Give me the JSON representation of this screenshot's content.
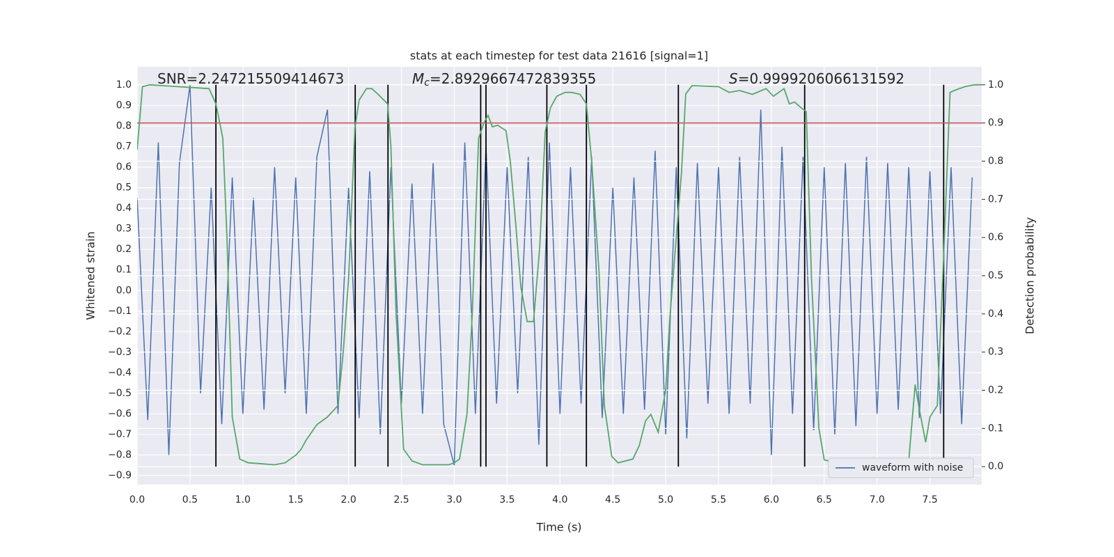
{
  "chart_data": {
    "type": "line",
    "title": "stats at each timestep for test data 21616 [signal=1]",
    "xlabel": "Time (s)",
    "ylabel": "Whitened strain",
    "y2label": "Detection probability",
    "grid": true,
    "legend": "lower right",
    "xlim": [
      0,
      7.99
    ],
    "ylim": [
      -0.944,
      1.088
    ],
    "y2lim": [
      -0.047,
      1.047
    ],
    "xticks": [
      {
        "value": 0,
        "label": "0.0"
      },
      {
        "value": 0.5,
        "label": "0.5"
      },
      {
        "value": 1,
        "label": "1.0"
      },
      {
        "value": 1.5,
        "label": "1.5"
      },
      {
        "value": 2,
        "label": "2.0"
      },
      {
        "value": 2.5,
        "label": "2.5"
      },
      {
        "value": 3,
        "label": "3.0"
      },
      {
        "value": 3.5,
        "label": "3.5"
      },
      {
        "value": 4,
        "label": "4.0"
      },
      {
        "value": 4.5,
        "label": "4.5"
      },
      {
        "value": 5,
        "label": "5.0"
      },
      {
        "value": 5.5,
        "label": "5.5"
      },
      {
        "value": 6,
        "label": "6.0"
      },
      {
        "value": 6.5,
        "label": "6.5"
      },
      {
        "value": 7,
        "label": "7.0"
      },
      {
        "value": 7.5,
        "label": "7.5"
      }
    ],
    "yticks": [
      {
        "value": -0.9,
        "label": "−0.9"
      },
      {
        "value": -0.8,
        "label": "−0.8"
      },
      {
        "value": -0.7,
        "label": "−0.7"
      },
      {
        "value": -0.6,
        "label": "−0.6"
      },
      {
        "value": -0.5,
        "label": "−0.5"
      },
      {
        "value": -0.4,
        "label": "−0.4"
      },
      {
        "value": -0.3,
        "label": "−0.3"
      },
      {
        "value": -0.2,
        "label": "−0.2"
      },
      {
        "value": -0.1,
        "label": "−0.1"
      },
      {
        "value": 0,
        "label": "0.0"
      },
      {
        "value": 0.1,
        "label": "0.1"
      },
      {
        "value": 0.2,
        "label": "0.2"
      },
      {
        "value": 0.3,
        "label": "0.3"
      },
      {
        "value": 0.4,
        "label": "0.4"
      },
      {
        "value": 0.5,
        "label": "0.5"
      },
      {
        "value": 0.6,
        "label": "0.6"
      },
      {
        "value": 0.7,
        "label": "0.7"
      },
      {
        "value": 0.8,
        "label": "0.8"
      },
      {
        "value": 0.9,
        "label": "0.9"
      },
      {
        "value": 1,
        "label": "1.0"
      }
    ],
    "y2ticks": [
      {
        "value": 0,
        "label": "0.0"
      },
      {
        "value": 0.1,
        "label": "0.1"
      },
      {
        "value": 0.2,
        "label": "0.2"
      },
      {
        "value": 0.3,
        "label": "0.3"
      },
      {
        "value": 0.4,
        "label": "0.4"
      },
      {
        "value": 0.5,
        "label": "0.5"
      },
      {
        "value": 0.6,
        "label": "0.6"
      },
      {
        "value": 0.7,
        "label": "0.7"
      },
      {
        "value": 0.8,
        "label": "0.8"
      },
      {
        "value": 0.9,
        "label": "0.9"
      },
      {
        "value": 1,
        "label": "1.0"
      }
    ],
    "series": [
      {
        "name": "waveform with noise",
        "color": "#4c72b0",
        "x": [
          0,
          0.1,
          0.2,
          0.3,
          0.4,
          0.5,
          0.6,
          0.7,
          0.8,
          0.9,
          1,
          1.1,
          1.2,
          1.3,
          1.4,
          1.5,
          1.6,
          1.7,
          1.8,
          1.9,
          2,
          2.1,
          2.2,
          2.3,
          2.4,
          2.5,
          2.6,
          2.7,
          2.8,
          2.9,
          3,
          3.1,
          3.2,
          3.3,
          3.4,
          3.5,
          3.6,
          3.7,
          3.8,
          3.9,
          4,
          4.1,
          4.2,
          4.3,
          4.4,
          4.5,
          4.6,
          4.7,
          4.8,
          4.9,
          5,
          5.1,
          5.2,
          5.3,
          5.4,
          5.5,
          5.6,
          5.7,
          5.8,
          5.9,
          6,
          6.1,
          6.2,
          6.3,
          6.4,
          6.5,
          6.6,
          6.7,
          6.8,
          6.9,
          7,
          7.1,
          7.2,
          7.3,
          7.4,
          7.5,
          7.6,
          7.7,
          7.8,
          7.9
        ],
        "values": [
          0.45,
          -0.63,
          0.72,
          -0.8,
          0.62,
          1.0,
          -0.5,
          0.5,
          -0.65,
          0.55,
          -0.6,
          0.45,
          -0.58,
          0.6,
          -0.5,
          0.55,
          -0.6,
          0.65,
          0.88,
          -0.6,
          0.5,
          -0.62,
          0.58,
          -0.7,
          0.6,
          -0.55,
          0.52,
          -0.6,
          0.62,
          -0.65,
          -0.85,
          0.72,
          -0.6,
          0.7,
          -0.55,
          0.6,
          -0.5,
          0.65,
          -0.75,
          0.72,
          -0.6,
          0.6,
          -0.55,
          0.65,
          -0.62,
          0.5,
          -0.6,
          0.55,
          -0.58,
          0.68,
          -0.7,
          0.6,
          -0.72,
          0.62,
          -0.55,
          0.6,
          -0.6,
          0.65,
          -0.55,
          0.88,
          -0.8,
          0.7,
          -0.6,
          0.65,
          -0.68,
          0.6,
          -0.7,
          0.62,
          -0.66,
          0.65,
          -0.6,
          0.62,
          -0.58,
          0.6,
          -0.62,
          0.58,
          -0.6,
          0.6,
          -0.65,
          0.55
        ]
      },
      {
        "color": "#55a868",
        "axis": "y2",
        "x": [
          0,
          0.05,
          0.12,
          0.68,
          0.745,
          0.81,
          0.85,
          0.9,
          0.97,
          1.05,
          1.3,
          1.4,
          1.5,
          1.55,
          1.6,
          1.7,
          1.8,
          1.9,
          1.95,
          2,
          2.06,
          2.1,
          2.17,
          2.22,
          2.28,
          2.37,
          2.4,
          2.45,
          2.52,
          2.6,
          2.7,
          2.95,
          3,
          3.05,
          3.12,
          3.17,
          3.23,
          3.28,
          3.32,
          3.36,
          3.41,
          3.49,
          3.53,
          3.58,
          3.63,
          3.69,
          3.75,
          3.81,
          3.86,
          3.91,
          3.97,
          4.05,
          4.11,
          4.19,
          4.25,
          4.3,
          4.37,
          4.42,
          4.49,
          4.55,
          4.69,
          4.75,
          4.81,
          4.86,
          4.93,
          5,
          5.04,
          5.1,
          5.15,
          5.19,
          5.25,
          5.5,
          5.6,
          5.7,
          5.82,
          5.95,
          6.02,
          6.12,
          6.17,
          6.22,
          6.28,
          6.33,
          6.38,
          6.45,
          6.5,
          6.68,
          6.88,
          7.27,
          7.3,
          7.36,
          7.4,
          7.46,
          7.5,
          7.57,
          7.63,
          7.69,
          7.73,
          7.83,
          7.92,
          7.99
        ],
        "values": [
          0.83,
          0.995,
          1.0,
          0.99,
          0.95,
          0.86,
          0.6,
          0.13,
          0.02,
          0.01,
          0.005,
          0.01,
          0.03,
          0.045,
          0.07,
          0.11,
          0.13,
          0.16,
          0.3,
          0.49,
          0.885,
          0.96,
          0.99,
          0.99,
          0.975,
          0.95,
          0.84,
          0.4,
          0.046,
          0.015,
          0.005,
          0.005,
          0.01,
          0.02,
          0.137,
          0.4,
          0.86,
          0.9,
          0.92,
          0.89,
          0.894,
          0.88,
          0.8,
          0.64,
          0.47,
          0.38,
          0.38,
          0.58,
          0.876,
          0.94,
          0.97,
          0.98,
          0.98,
          0.975,
          0.95,
          0.8,
          0.51,
          0.16,
          0.027,
          0.01,
          0.02,
          0.055,
          0.12,
          0.137,
          0.09,
          0.2,
          0.39,
          0.6,
          0.77,
          0.976,
          0.998,
          0.995,
          0.98,
          0.985,
          0.975,
          0.99,
          0.97,
          0.99,
          0.95,
          0.955,
          0.94,
          0.93,
          0.49,
          0.1,
          0.018,
          0.005,
          0.008,
          0.004,
          0.015,
          0.215,
          0.15,
          0.064,
          0.13,
          0.16,
          0.55,
          0.98,
          0.985,
          0.995,
          1.0,
          1.0
        ]
      }
    ],
    "hline": {
      "value": 0.9,
      "color": "#c44e52",
      "axis": "y2"
    },
    "vlines": {
      "x": [
        0.745,
        2.063,
        2.373,
        3.25,
        3.3,
        3.876,
        4.25,
        5.12,
        6.315,
        7.63
      ],
      "color": "#000000",
      "axis": "y2",
      "span": [
        0,
        1
      ]
    },
    "annotations": [
      {
        "text": "SNR=2.247215509414673"
      },
      {
        "symbol": "M",
        "subscript": "c",
        "text": "=2.8929667472839355"
      },
      {
        "symbol": "S",
        "text": "=0.9999206066131592"
      }
    ]
  }
}
